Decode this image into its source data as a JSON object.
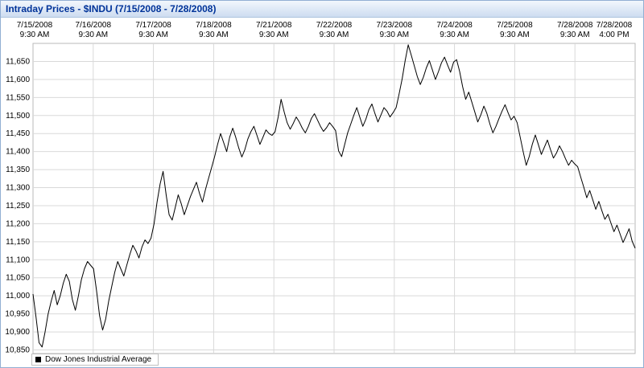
{
  "window": {
    "title": "Intraday Prices - $INDU (7/15/2008 - 7/28/2008)"
  },
  "legend": {
    "label": "Dow Jones Industrial Average",
    "color": "#000000"
  },
  "chart_data": {
    "type": "line",
    "title": "Intraday Prices - $INDU (7/15/2008 - 7/28/2008)",
    "series_name": "Dow Jones Industrial Average",
    "line_color": "#000000",
    "grid": true,
    "grid_color": "#d9d9d9",
    "legend_position": "bottom-left",
    "x_range": [
      0,
      10
    ],
    "y_range": [
      10840,
      11700
    ],
    "y_ticks": [
      11650,
      11600,
      11550,
      11500,
      11450,
      11400,
      11350,
      11300,
      11250,
      11200,
      11150,
      11100,
      11050,
      11000,
      10950,
      10900,
      10850
    ],
    "x_tick_labels": [
      [
        "7/15/2008",
        "9:30 AM"
      ],
      [
        "7/16/2008",
        "9:30 AM"
      ],
      [
        "7/17/2008",
        "9:30 AM"
      ],
      [
        "7/18/2008",
        "9:30 AM"
      ],
      [
        "7/21/2008",
        "9:30 AM"
      ],
      [
        "7/22/2008",
        "9:30 AM"
      ],
      [
        "7/23/2008",
        "9:30 AM"
      ],
      [
        "7/24/2008",
        "9:30 AM"
      ],
      [
        "7/25/2008",
        "9:30 AM"
      ],
      [
        "7/28/2008",
        "9:30 AM"
      ],
      [
        "7/28/2008",
        "4:00 PM"
      ]
    ],
    "points_per_day": 20,
    "values": [
      11005,
      10940,
      10870,
      10858,
      10900,
      10950,
      10985,
      11015,
      10975,
      11000,
      11035,
      11060,
      11040,
      10990,
      10960,
      11000,
      11045,
      11075,
      11095,
      11085,
      11075,
      11015,
      10945,
      10905,
      10935,
      10985,
      11025,
      11065,
      11095,
      11075,
      11055,
      11085,
      11115,
      11140,
      11125,
      11105,
      11135,
      11155,
      11145,
      11160,
      11200,
      11260,
      11310,
      11345,
      11280,
      11225,
      11210,
      11245,
      11280,
      11255,
      11225,
      11250,
      11275,
      11295,
      11315,
      11285,
      11260,
      11295,
      11325,
      11355,
      11385,
      11420,
      11450,
      11425,
      11400,
      11440,
      11465,
      11440,
      11410,
      11385,
      11405,
      11435,
      11455,
      11470,
      11445,
      11420,
      11440,
      11460,
      11450,
      11445,
      11455,
      11495,
      11545,
      11510,
      11480,
      11462,
      11478,
      11496,
      11482,
      11465,
      11452,
      11470,
      11492,
      11505,
      11488,
      11470,
      11456,
      11466,
      11480,
      11470,
      11458,
      11402,
      11386,
      11420,
      11452,
      11476,
      11500,
      11522,
      11496,
      11470,
      11490,
      11516,
      11532,
      11506,
      11482,
      11502,
      11522,
      11512,
      11496,
      11508,
      11522,
      11560,
      11602,
      11652,
      11696,
      11668,
      11638,
      11608,
      11586,
      11606,
      11632,
      11652,
      11626,
      11600,
      11622,
      11646,
      11662,
      11640,
      11620,
      11648,
      11655,
      11622,
      11580,
      11545,
      11565,
      11538,
      11510,
      11482,
      11502,
      11526,
      11506,
      11476,
      11452,
      11470,
      11492,
      11512,
      11530,
      11508,
      11488,
      11498,
      11480,
      11440,
      11400,
      11362,
      11386,
      11420,
      11446,
      11420,
      11392,
      11412,
      11432,
      11406,
      11382,
      11396,
      11416,
      11400,
      11380,
      11362,
      11376,
      11366,
      11358,
      11330,
      11302,
      11272,
      11292,
      11266,
      11240,
      11262,
      11236,
      11212,
      11226,
      11202,
      11178,
      11196,
      11172,
      11148,
      11166,
      11186,
      11152,
      11132
    ]
  }
}
